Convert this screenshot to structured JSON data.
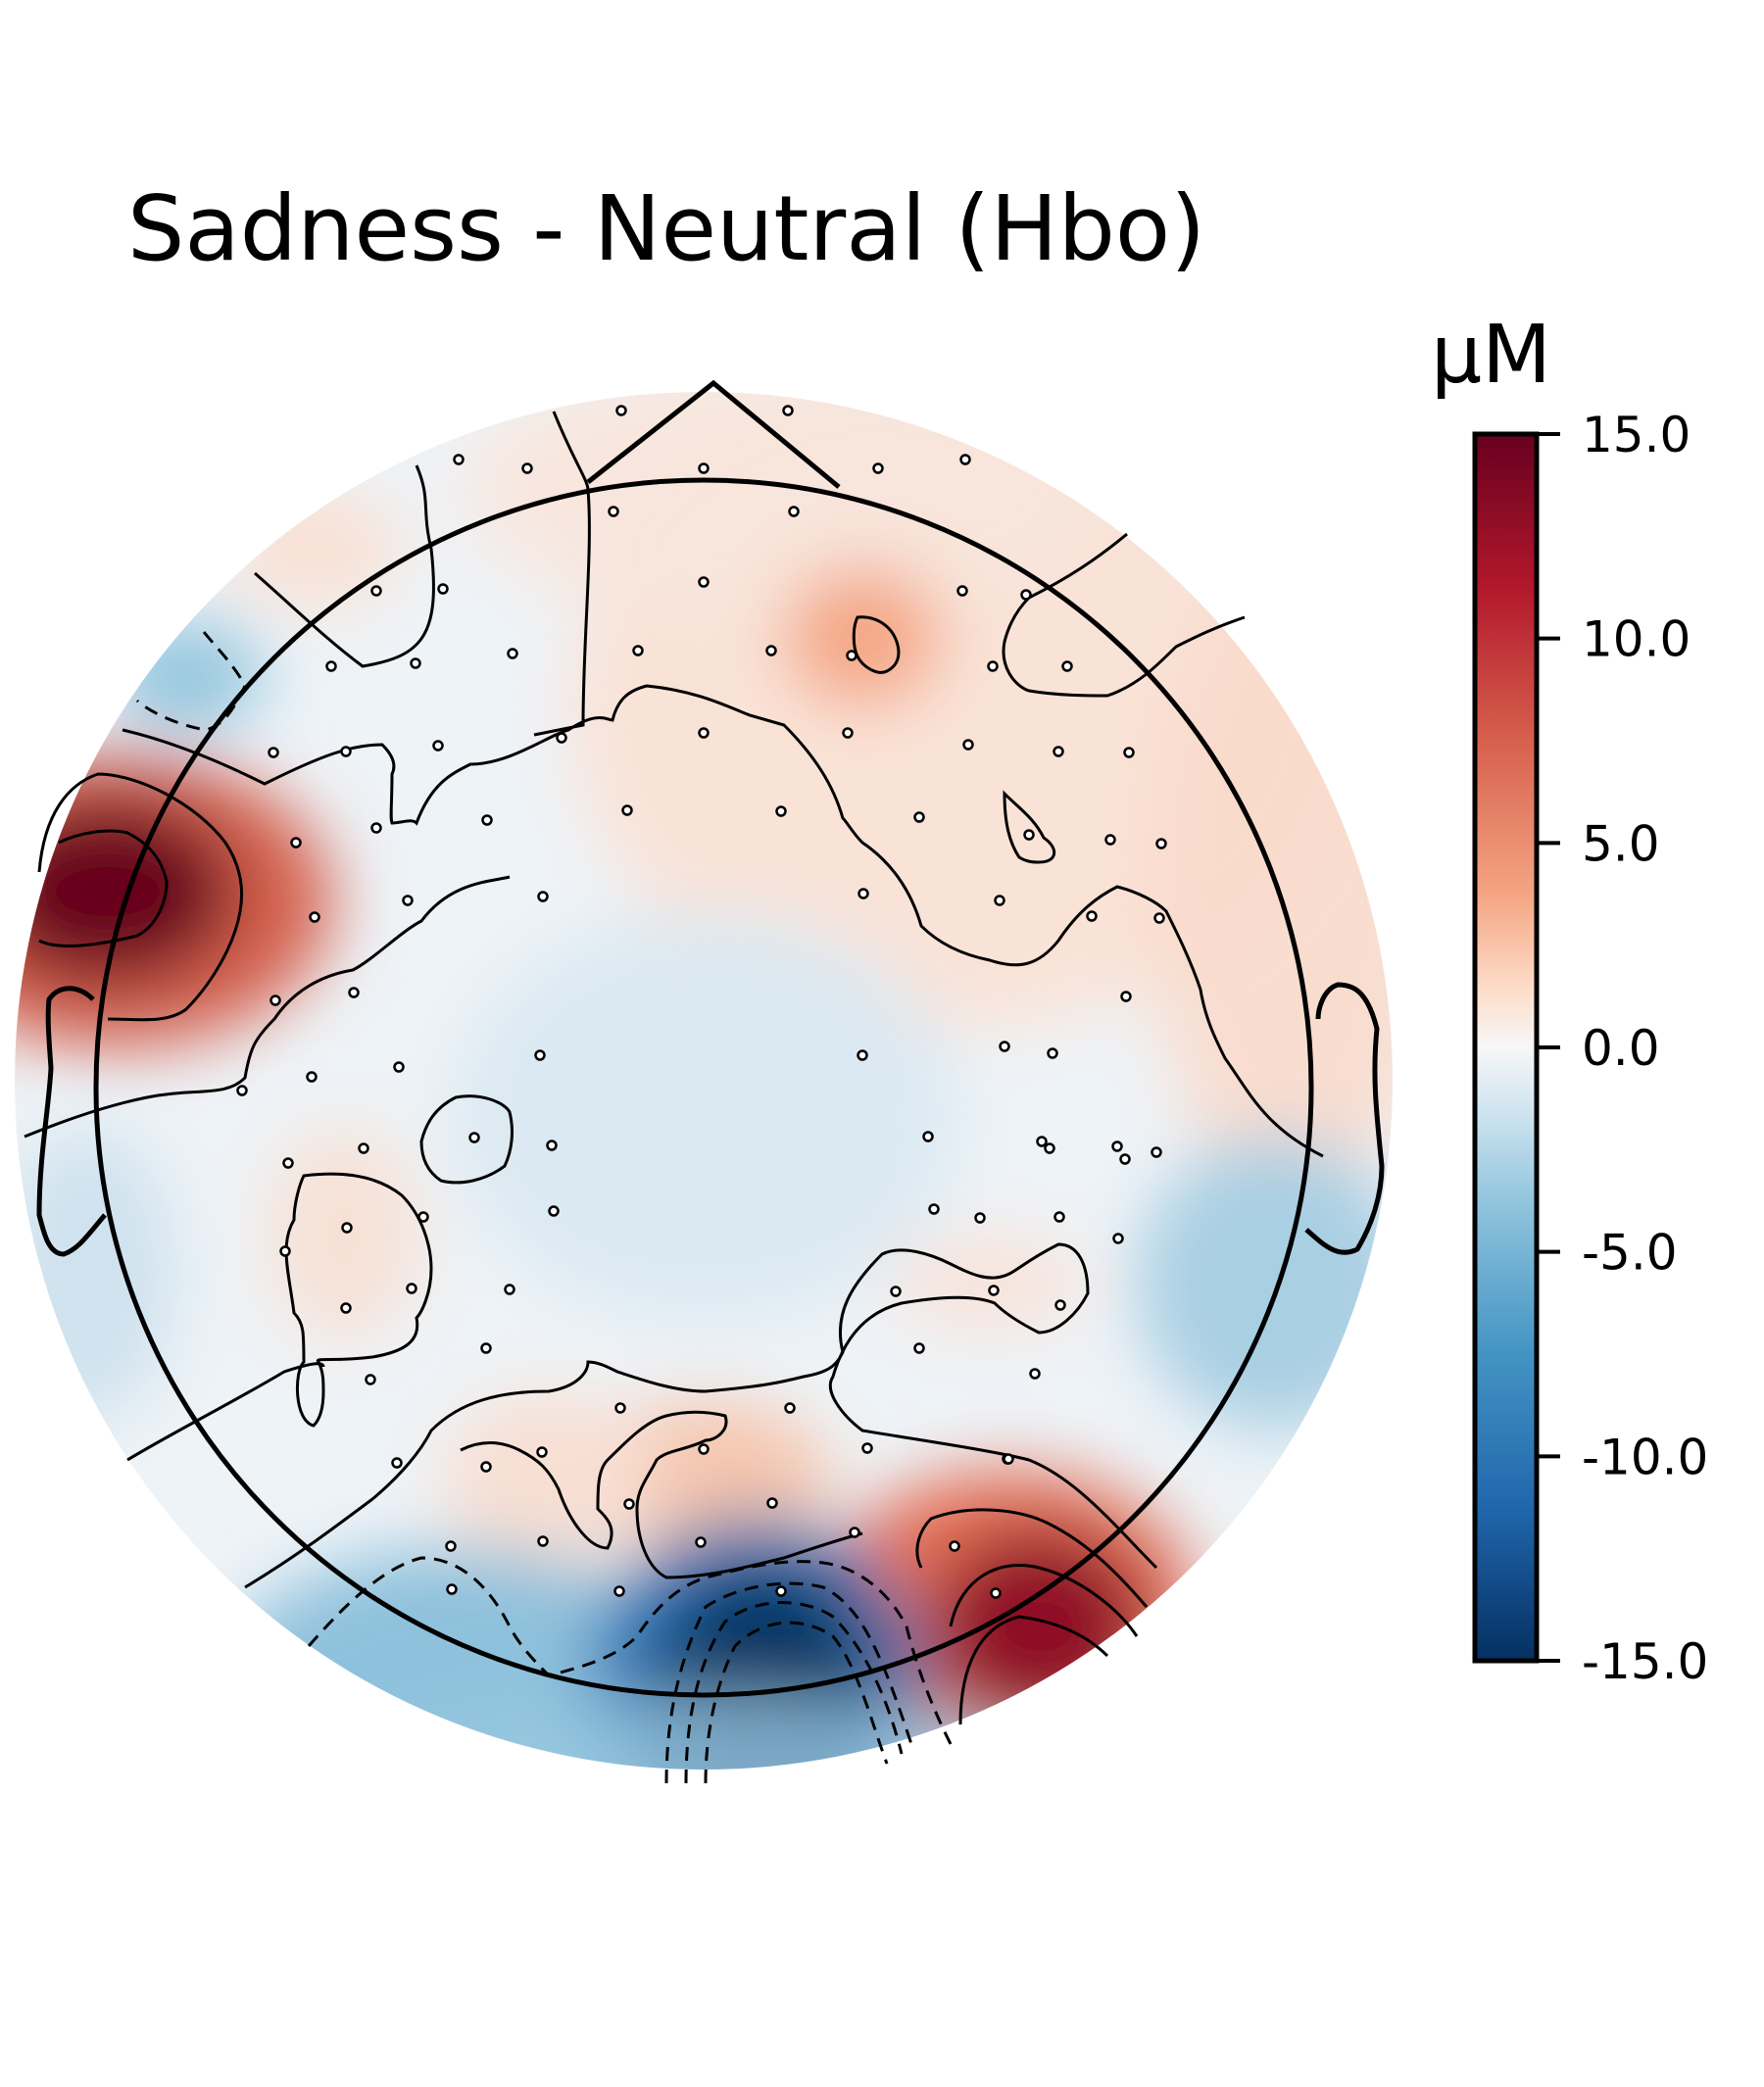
{
  "chart_data": {
    "type": "heatmap",
    "subtype": "topographic-head-map",
    "title": "Sadness - Neutral (Hbo)",
    "colorbar": {
      "unit": "µM",
      "range": [
        -15.0,
        15.0
      ],
      "ticks": [
        "15.0",
        "10.0",
        "5.0",
        "0.0",
        "-5.0",
        "-10.0",
        "-15.0"
      ],
      "colormap": "RdBu_r",
      "colors": {
        "max": "#67001f",
        "high": "#b2182b",
        "mid_high": "#f4a582",
        "zero": "#f7f7f7",
        "mid_low": "#92c5de",
        "low": "#2166ac",
        "min": "#053061"
      }
    },
    "regions": [
      {
        "label": "left-temporal maximum",
        "value": 15.0
      },
      {
        "label": "right-occipital maximum",
        "value": 13.0
      },
      {
        "label": "central-occipital minimum",
        "value": -15.0
      },
      {
        "label": "left-occipital negative area",
        "value": -7.0
      },
      {
        "label": "left-frontal negative area",
        "value": -6.0
      },
      {
        "label": "right-frontal positive area",
        "value": 5.0
      },
      {
        "label": "centre",
        "value": -1.5
      }
    ],
    "sensors_shown": true,
    "contours_shown": true
  }
}
